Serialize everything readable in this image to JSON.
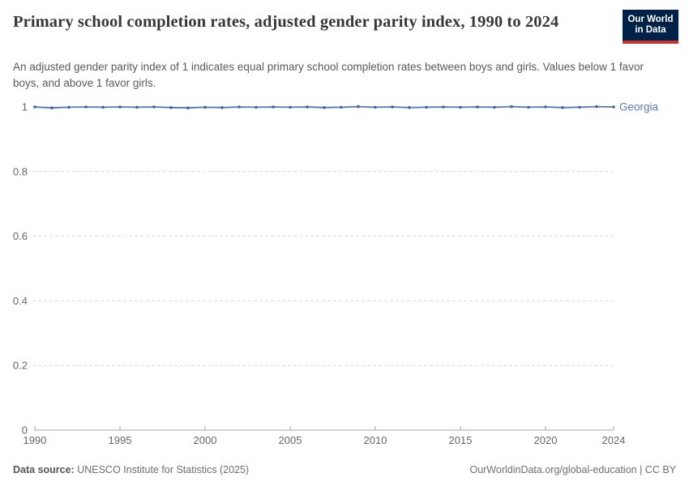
{
  "header": {
    "title": "Primary school completion rates, adjusted gender parity index, 1990 to 2024",
    "subtitle": "An adjusted gender parity index of 1 indicates equal primary school completion rates between boys and girls. Values below 1 favor boys, and above 1 favor girls.",
    "logo": {
      "line1": "Our World",
      "line2": "in Data",
      "bg_color": "#002147",
      "accent_color": "#bf3730"
    }
  },
  "chart_data": {
    "type": "line",
    "title": "Primary school completion rates, adjusted gender parity index, 1990 to 2024",
    "xlabel": "",
    "ylabel": "",
    "xlim": [
      1990,
      2024
    ],
    "ylim": [
      0,
      1
    ],
    "grid": "horizontal-dashed",
    "legend_position": "end-of-line-label",
    "x_ticks": [
      1990,
      1995,
      2000,
      2005,
      2010,
      2015,
      2020,
      2024
    ],
    "y_ticks": [
      0,
      0.2,
      0.4,
      0.6,
      0.8,
      1
    ],
    "y_tick_labels": [
      "0",
      "0.2",
      "0.4",
      "0.6",
      "0.8",
      "1"
    ],
    "x": [
      1990,
      1991,
      1992,
      1993,
      1994,
      1995,
      1996,
      1997,
      1998,
      1999,
      2000,
      2001,
      2002,
      2003,
      2004,
      2005,
      2006,
      2007,
      2008,
      2009,
      2010,
      2011,
      2012,
      2013,
      2014,
      2015,
      2016,
      2017,
      2018,
      2019,
      2020,
      2021,
      2022,
      2023,
      2024
    ],
    "series": [
      {
        "name": "Georgia",
        "color": "#5876b4",
        "marker_color": "#44639f",
        "label_color": "#5b7cb8",
        "values": [
          1.0,
          0.997,
          0.999,
          1.0,
          0.999,
          1.0,
          0.999,
          1.0,
          0.998,
          0.997,
          0.999,
          0.998,
          1.0,
          0.999,
          1.0,
          0.999,
          1.0,
          0.998,
          0.999,
          1.001,
          0.999,
          1.0,
          0.998,
          0.999,
          1.0,
          0.999,
          1.0,
          0.999,
          1.001,
          0.999,
          1.0,
          0.998,
          0.999,
          1.001,
          1.0
        ]
      }
    ],
    "style": {
      "gridline_color": "#dcdcdc",
      "axis_line_color": "#a6a6a6",
      "tick_label_color": "#666666"
    }
  },
  "footer": {
    "datasource_label": "Data source:",
    "datasource_value": " UNESCO Institute for Statistics (2025)",
    "attribution": "OurWorldinData.org/global-education | CC BY"
  }
}
